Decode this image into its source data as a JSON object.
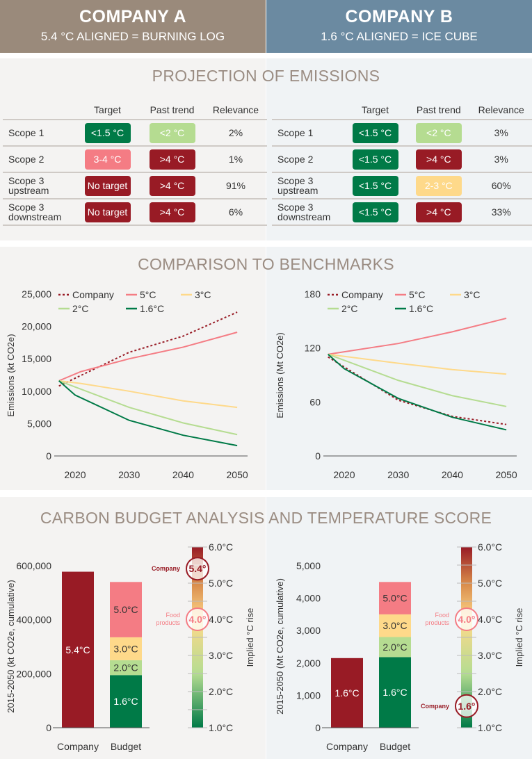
{
  "header": {
    "a": {
      "title": "COMPANY A",
      "subtitle": "5.4 °C ALIGNED = BURNING LOG"
    },
    "b": {
      "title": "COMPANY B",
      "subtitle": "1.6 °C ALIGNED = ICE CUBE"
    }
  },
  "colors": {
    "header_a": "#9a8a7b",
    "header_b": "#6b8aa1",
    "dark_red": "#981b25",
    "pink": "#f47c84",
    "yellow": "#fed98a",
    "light_green": "#b5dc91",
    "dark_green": "#007a47"
  },
  "projection": {
    "title": "PROJECTION OF EMISSIONS",
    "columns": [
      "Target",
      "Past trend",
      "Relevance"
    ],
    "a": [
      {
        "scope": "Scope 1",
        "target": "<1.5 °C",
        "tc": "dark_green",
        "trend": "<2 °C",
        "rc": "light_green",
        "rel": "2%"
      },
      {
        "scope": "Scope 2",
        "target": "3-4 °C",
        "tc": "pink",
        "trend": ">4 °C",
        "rc": "dark_red",
        "rel": "1%"
      },
      {
        "scope": "Scope 3 upstream",
        "target": "No target",
        "tc": "dark_red",
        "trend": ">4 °C",
        "rc": "dark_red",
        "rel": "91%"
      },
      {
        "scope": "Scope 3 downstream",
        "target": "No target",
        "tc": "dark_red",
        "trend": ">4 °C",
        "rc": "dark_red",
        "rel": "6%"
      }
    ],
    "b": [
      {
        "scope": "Scope 1",
        "target": "<1.5 °C",
        "tc": "dark_green",
        "trend": "<2 °C",
        "rc": "light_green",
        "rel": "3%"
      },
      {
        "scope": "Scope 2",
        "target": "<1.5 °C",
        "tc": "dark_green",
        "trend": ">4 °C",
        "rc": "dark_red",
        "rel": "3%"
      },
      {
        "scope": "Scope 3 upstream",
        "target": "<1.5 °C",
        "tc": "dark_green",
        "trend": "2-3 °C",
        "rc": "yellow",
        "rel": "60%"
      },
      {
        "scope": "Scope 3 downstream",
        "target": "<1.5 °C",
        "tc": "dark_green",
        "trend": ">4 °C",
        "rc": "dark_red",
        "rel": "33%"
      }
    ]
  },
  "benchmarks_title": "COMPARISON TO BENCHMARKS",
  "budget_title": "CARBON BUDGET ANALYSIS AND TEMPERATURE SCORE",
  "chart_data": [
    {
      "type": "line",
      "ylabel": "Emissions (kt CO2e)",
      "ylim": [
        0,
        25000
      ],
      "yticks": [
        0,
        5000,
        10000,
        15000,
        20000,
        25000
      ],
      "ytick_labels": [
        "0",
        "5,000",
        "10,000",
        "15,000",
        "20,000",
        "25,000"
      ],
      "xticks": [
        2020,
        2030,
        2040,
        2050
      ],
      "legend": "top-left",
      "series": [
        {
          "name": "Company",
          "color": "#981b25",
          "dash": true,
          "points": [
            [
              2017,
              10800
            ],
            [
              2030,
              16000
            ],
            [
              2040,
              18500
            ],
            [
              2050,
              22200
            ]
          ]
        },
        {
          "name": "5°C",
          "color": "#f47c84",
          "points": [
            [
              2017,
              11600
            ],
            [
              2021,
              13000
            ],
            [
              2030,
              15000
            ],
            [
              2040,
              16800
            ],
            [
              2050,
              19100
            ]
          ]
        },
        {
          "name": "3°C",
          "color": "#fed98a",
          "points": [
            [
              2017,
              11600
            ],
            [
              2021,
              11200
            ],
            [
              2030,
              10000
            ],
            [
              2040,
              8500
            ],
            [
              2050,
              7500
            ]
          ]
        },
        {
          "name": "2°C",
          "color": "#b5dc91",
          "points": [
            [
              2017,
              11600
            ],
            [
              2030,
              7500
            ],
            [
              2040,
              5100
            ],
            [
              2050,
              3300
            ]
          ]
        },
        {
          "name": "1.6°C",
          "color": "#007a47",
          "points": [
            [
              2017,
              11600
            ],
            [
              2020,
              9400
            ],
            [
              2030,
              5500
            ],
            [
              2040,
              3200
            ],
            [
              2050,
              1600
            ]
          ]
        }
      ]
    },
    {
      "type": "line",
      "ylabel": "Emissions (Mt CO2e)",
      "ylim": [
        0,
        180
      ],
      "yticks": [
        0,
        60,
        120,
        180
      ],
      "ytick_labels": [
        "0",
        "60",
        "120",
        "180"
      ],
      "xticks": [
        2020,
        2030,
        2040,
        2050
      ],
      "legend": "top-left",
      "series": [
        {
          "name": "Company",
          "color": "#981b25",
          "dash": true,
          "points": [
            [
              2017,
              110
            ],
            [
              2030,
              62
            ],
            [
              2040,
              44
            ],
            [
              2050,
              35
            ]
          ]
        },
        {
          "name": "5°C",
          "color": "#f47c84",
          "points": [
            [
              2017,
              113
            ],
            [
              2030,
              125
            ],
            [
              2040,
              138
            ],
            [
              2050,
              153
            ]
          ]
        },
        {
          "name": "3°C",
          "color": "#fed98a",
          "points": [
            [
              2017,
              113
            ],
            [
              2030,
              103
            ],
            [
              2040,
              96
            ],
            [
              2050,
              91
            ]
          ]
        },
        {
          "name": "2°C",
          "color": "#b5dc91",
          "points": [
            [
              2017,
              113
            ],
            [
              2030,
              84
            ],
            [
              2040,
              67
            ],
            [
              2050,
              55
            ]
          ]
        },
        {
          "name": "1.6°C",
          "color": "#007a47",
          "points": [
            [
              2017,
              113
            ],
            [
              2020,
              97
            ],
            [
              2030,
              64
            ],
            [
              2040,
              43
            ],
            [
              2050,
              29
            ]
          ]
        }
      ]
    },
    {
      "type": "bar",
      "ylabel": "2015-2050 (kt CO2e, cumulative)",
      "ylim": [
        0,
        600000
      ],
      "yticks": [
        0,
        200000,
        400000,
        600000
      ],
      "ytick_labels": [
        "0",
        "200,000",
        "400,000",
        "600,000"
      ],
      "categories": [
        "Company",
        "Budget"
      ],
      "company": {
        "value": 578000,
        "label": "5.4°C"
      },
      "budget": [
        {
          "label": "1.6°C",
          "top": 195000,
          "color": "#007a47"
        },
        {
          "label": "2.0°C",
          "top": 250000,
          "color": "#b5dc91"
        },
        {
          "label": "3.0°C",
          "top": 335000,
          "color": "#fed98a"
        },
        {
          "label": "5.0°C",
          "top": 540000,
          "color": "#f47c84"
        }
      ],
      "scale": {
        "label": "Implied °C rise",
        "range": [
          1,
          6
        ],
        "ticks": [
          "1.0°C",
          "2.0°C",
          "3.0°C",
          "4.0°C",
          "5.0°C",
          "6.0°C"
        ],
        "markers": [
          {
            "name": "Company",
            "value": 5.4,
            "text": "5.4°",
            "color": "#981b25"
          },
          {
            "name": "Food products",
            "value": 4.0,
            "text": "4.0°",
            "color": "#f47c84"
          }
        ]
      }
    },
    {
      "type": "bar",
      "ylabel": "2015-2050 (Mt CO2e, cumulative)",
      "ylim": [
        0,
        5000
      ],
      "yticks": [
        0,
        1000,
        2000,
        3000,
        4000,
        5000
      ],
      "ytick_labels": [
        "0",
        "1,000",
        "2,000",
        "3,000",
        "4,000",
        "5,000"
      ],
      "categories": [
        "Company",
        "Budget"
      ],
      "company": {
        "value": 2150,
        "label": "1.6°C"
      },
      "budget": [
        {
          "label": "1.6°C",
          "top": 2180,
          "color": "#007a47"
        },
        {
          "label": "2.0°C",
          "top": 2800,
          "color": "#b5dc91"
        },
        {
          "label": "3.0°C",
          "top": 3500,
          "color": "#fed98a"
        },
        {
          "label": "5.0°C",
          "top": 4500,
          "color": "#f47c84"
        }
      ],
      "scale": {
        "label": "Implied °C rise",
        "range": [
          1,
          6
        ],
        "ticks": [
          "1.0°C",
          "2.0°C",
          "3.0°C",
          "4.0°C",
          "5.0°C",
          "6.0°C"
        ],
        "markers": [
          {
            "name": "Food products",
            "value": 4.0,
            "text": "4.0°",
            "color": "#f47c84"
          },
          {
            "name": "Company",
            "value": 1.6,
            "text": "1.6°",
            "color": "#981b25"
          }
        ]
      }
    }
  ]
}
